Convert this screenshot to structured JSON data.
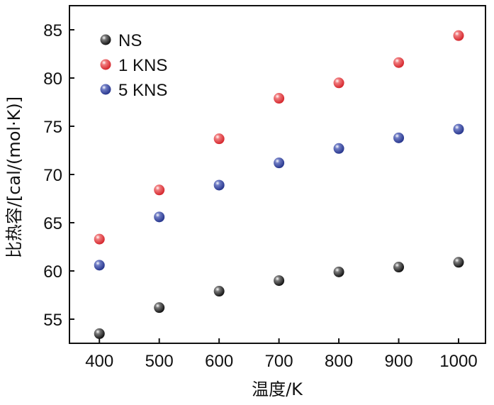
{
  "chart_data": {
    "type": "scatter",
    "title": "",
    "xlabel": "温度/K",
    "ylabel": "比热容/[cal/(mol·K)]",
    "xlim": [
      350,
      1045
    ],
    "ylim": [
      52.5,
      87.5
    ],
    "xticks": [
      400,
      500,
      600,
      700,
      800,
      900,
      1000
    ],
    "yticks": [
      55,
      60,
      65,
      70,
      75,
      80,
      85
    ],
    "grid": false,
    "legend_position": "top-left",
    "x": [
      400,
      500,
      600,
      700,
      800,
      900,
      1000
    ],
    "series": [
      {
        "name": "NS",
        "color": "#111111",
        "values": [
          53.5,
          56.2,
          57.9,
          59.0,
          59.9,
          60.4,
          60.9
        ]
      },
      {
        "name": "1 KNS",
        "color": "#e0242a",
        "values": [
          63.3,
          68.4,
          73.7,
          77.9,
          79.5,
          81.6,
          84.4
        ]
      },
      {
        "name": "5 KNS",
        "color": "#2b3c9a",
        "values": [
          60.6,
          65.6,
          68.9,
          71.2,
          72.7,
          73.8,
          74.7
        ]
      }
    ]
  }
}
